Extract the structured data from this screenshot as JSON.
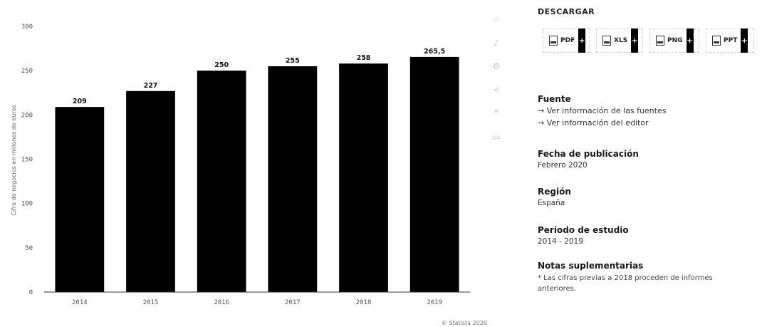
{
  "chart_data": {
    "type": "bar",
    "categories": [
      "2014",
      "2015",
      "2016",
      "2017",
      "2018",
      "2019"
    ],
    "values": [
      209,
      227,
      250,
      255,
      258,
      265.5
    ],
    "value_labels": [
      "209",
      "227",
      "250",
      "255",
      "258",
      "265,5"
    ],
    "y_ticks": [
      0,
      50,
      100,
      150,
      200,
      250,
      300
    ],
    "ylim": [
      0,
      300
    ],
    "ylabel": "Cifra de negocios en millones de euros",
    "xlabel": "",
    "title": "",
    "bar_color": "#000000",
    "grid": false,
    "credit": "© Statista 2020"
  },
  "panel": {
    "download_title": "DESCARGAR",
    "downloads": [
      {
        "label": "PDF",
        "icon": "pdf-file-icon"
      },
      {
        "label": "XLS",
        "icon": "xls-file-icon"
      },
      {
        "label": "PNG",
        "icon": "png-file-icon"
      },
      {
        "label": "PPT",
        "icon": "ppt-file-icon"
      }
    ],
    "plus": "+",
    "fuente": {
      "title": "Fuente",
      "links": [
        "→ Ver información de las fuentes",
        "→ Ver información del editor"
      ]
    },
    "fecha": {
      "title": "Fecha de publicación",
      "value": "Febrero 2020"
    },
    "region": {
      "title": "Región",
      "value": "España"
    },
    "periodo": {
      "title": "Periodo de estudio",
      "value": "2014 - 2019"
    },
    "notas": {
      "title": "Notas suplementarias",
      "value": "* Las cifras previas a 2018 proceden de informes anteriores."
    }
  }
}
